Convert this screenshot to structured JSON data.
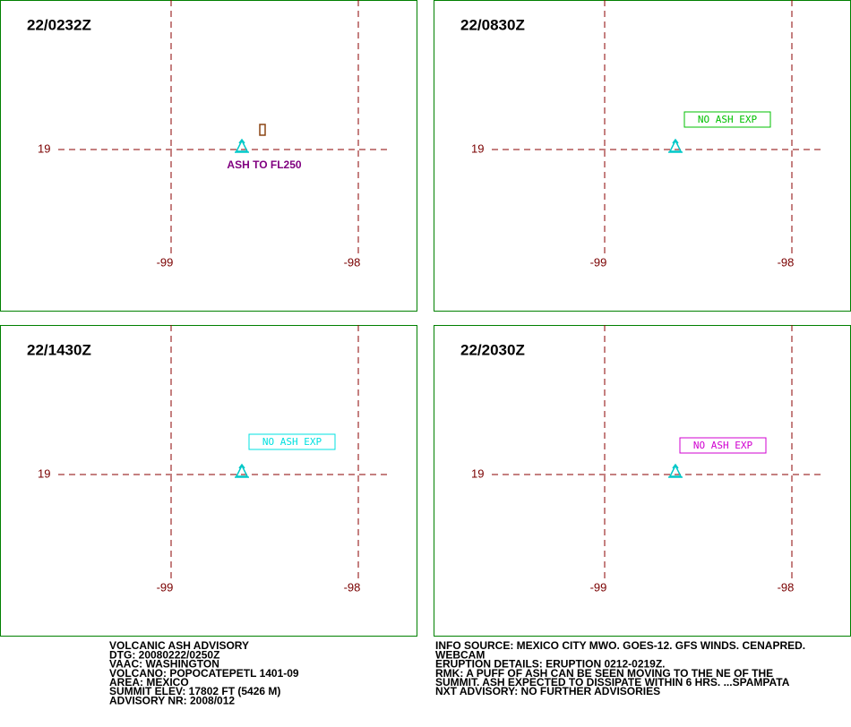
{
  "panels": [
    {
      "time": "22/0232Z",
      "lat": "19",
      "lon_west": "-99",
      "lon_east": "-98",
      "annotation": "ASH TO FL250"
    },
    {
      "time": "22/0830Z",
      "lat": "19",
      "lon_west": "-99",
      "lon_east": "-98",
      "annotation": "NO ASH EXP"
    },
    {
      "time": "22/1430Z",
      "lat": "19",
      "lon_west": "-99",
      "lon_east": "-98",
      "annotation": "NO ASH EXP"
    },
    {
      "time": "22/2030Z",
      "lat": "19",
      "lon_west": "-99",
      "lon_east": "-98",
      "annotation": "NO ASH EXP"
    }
  ],
  "advisory_left": [
    "VOLCANIC ASH ADVISORY",
    "DTG: 20080222/0250Z",
    "VAAC: WASHINGTON",
    "VOLCANO: POPOCATEPETL 1401-09",
    "AREA: MEXICO",
    "SUMMIT ELEV: 17802 FT (5426 M)",
    "ADVISORY NR: 2008/012"
  ],
  "advisory_right": [
    "INFO SOURCE: MEXICO CITY MWO. GOES-12. GFS WINDS. CENAPRED.",
    "WEBCAM",
    "ERUPTION DETAILS: ERUPTION 0212-0219Z.",
    "RMK: A PUFF OF ASH CAN BE SEEN MOVING TO THE NE OF THE",
    "SUMMIT. ASH EXPECTED TO DISSIPATE WITHIN 6 HRS. ...SPAMPATA",
    "NXT ADVISORY: NO FURTHER ADVISORIES"
  ]
}
